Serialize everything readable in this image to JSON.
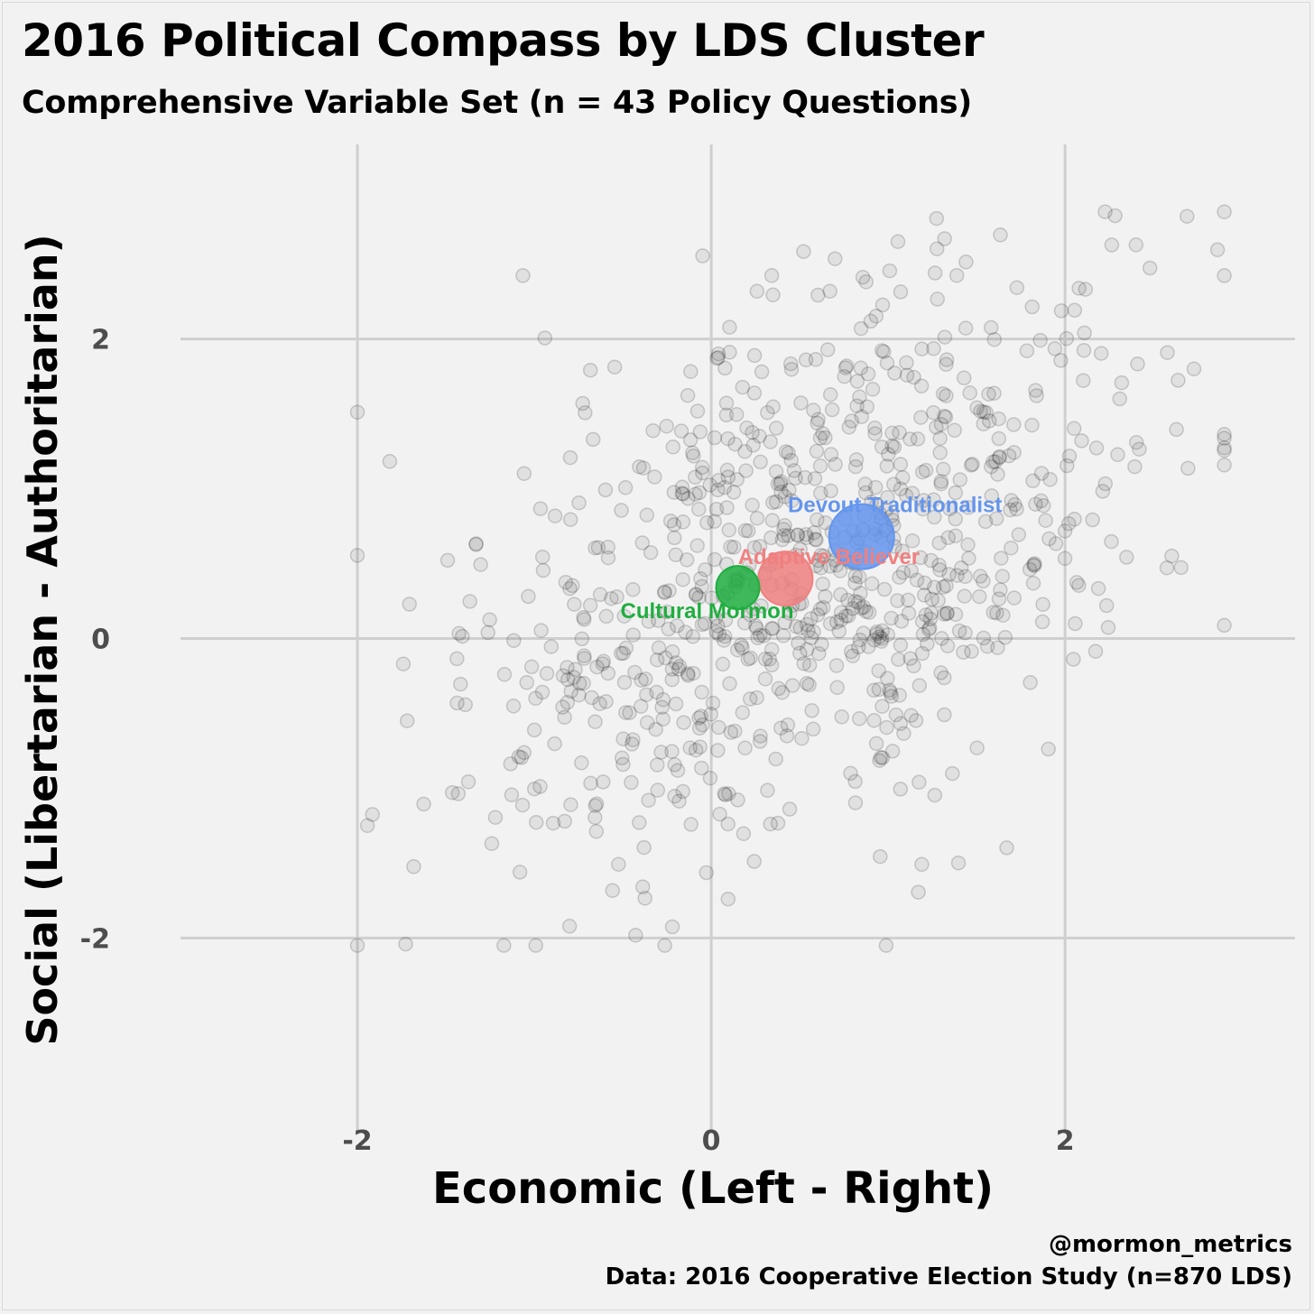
{
  "title": "2016 Political Compass by LDS Cluster",
  "subtitle": "Comprehensive Variable Set (n = 43 Policy Questions)",
  "caption": {
    "handle": "@mormon_metrics",
    "source": "Data: 2016 Cooperative Election Study (n=870 LDS)"
  },
  "colors": {
    "background": "#f2f2f2",
    "grid": "#cfcfcf",
    "points": "#000000",
    "devout": "#6495ED",
    "adaptive": "#F08080",
    "cultural": "#1FAE3F"
  },
  "chart_data": {
    "type": "scatter",
    "xlabel": "Economic (Left - Right)",
    "ylabel": "Social (Libertarian - Authoritarian)",
    "xlim": [
      -3.0,
      3.3
    ],
    "ylim": [
      -3.3,
      3.3
    ],
    "x_ticks": [
      -2,
      0,
      2
    ],
    "y_ticks": [
      -2,
      0,
      2
    ],
    "x_tick_labels": [
      "-2",
      "0",
      "2"
    ],
    "y_tick_labels": [
      "-2",
      "0",
      "2"
    ],
    "grid": true,
    "respondents": {
      "count": 870,
      "approx_mean": [
        0.5,
        0.45
      ],
      "approx_sd": [
        0.95,
        0.95
      ],
      "approx_corr": 0.45
    },
    "clusters": [
      {
        "name": "Devout Traditionalist",
        "x": 0.85,
        "y": 0.68,
        "size": 3,
        "color_key": "devout"
      },
      {
        "name": "Adaptive Believer",
        "x": 0.42,
        "y": 0.4,
        "size": 2,
        "color_key": "adaptive"
      },
      {
        "name": "Cultural Mormon",
        "x": 0.15,
        "y": 0.34,
        "size": 1,
        "color_key": "cultural"
      }
    ]
  }
}
